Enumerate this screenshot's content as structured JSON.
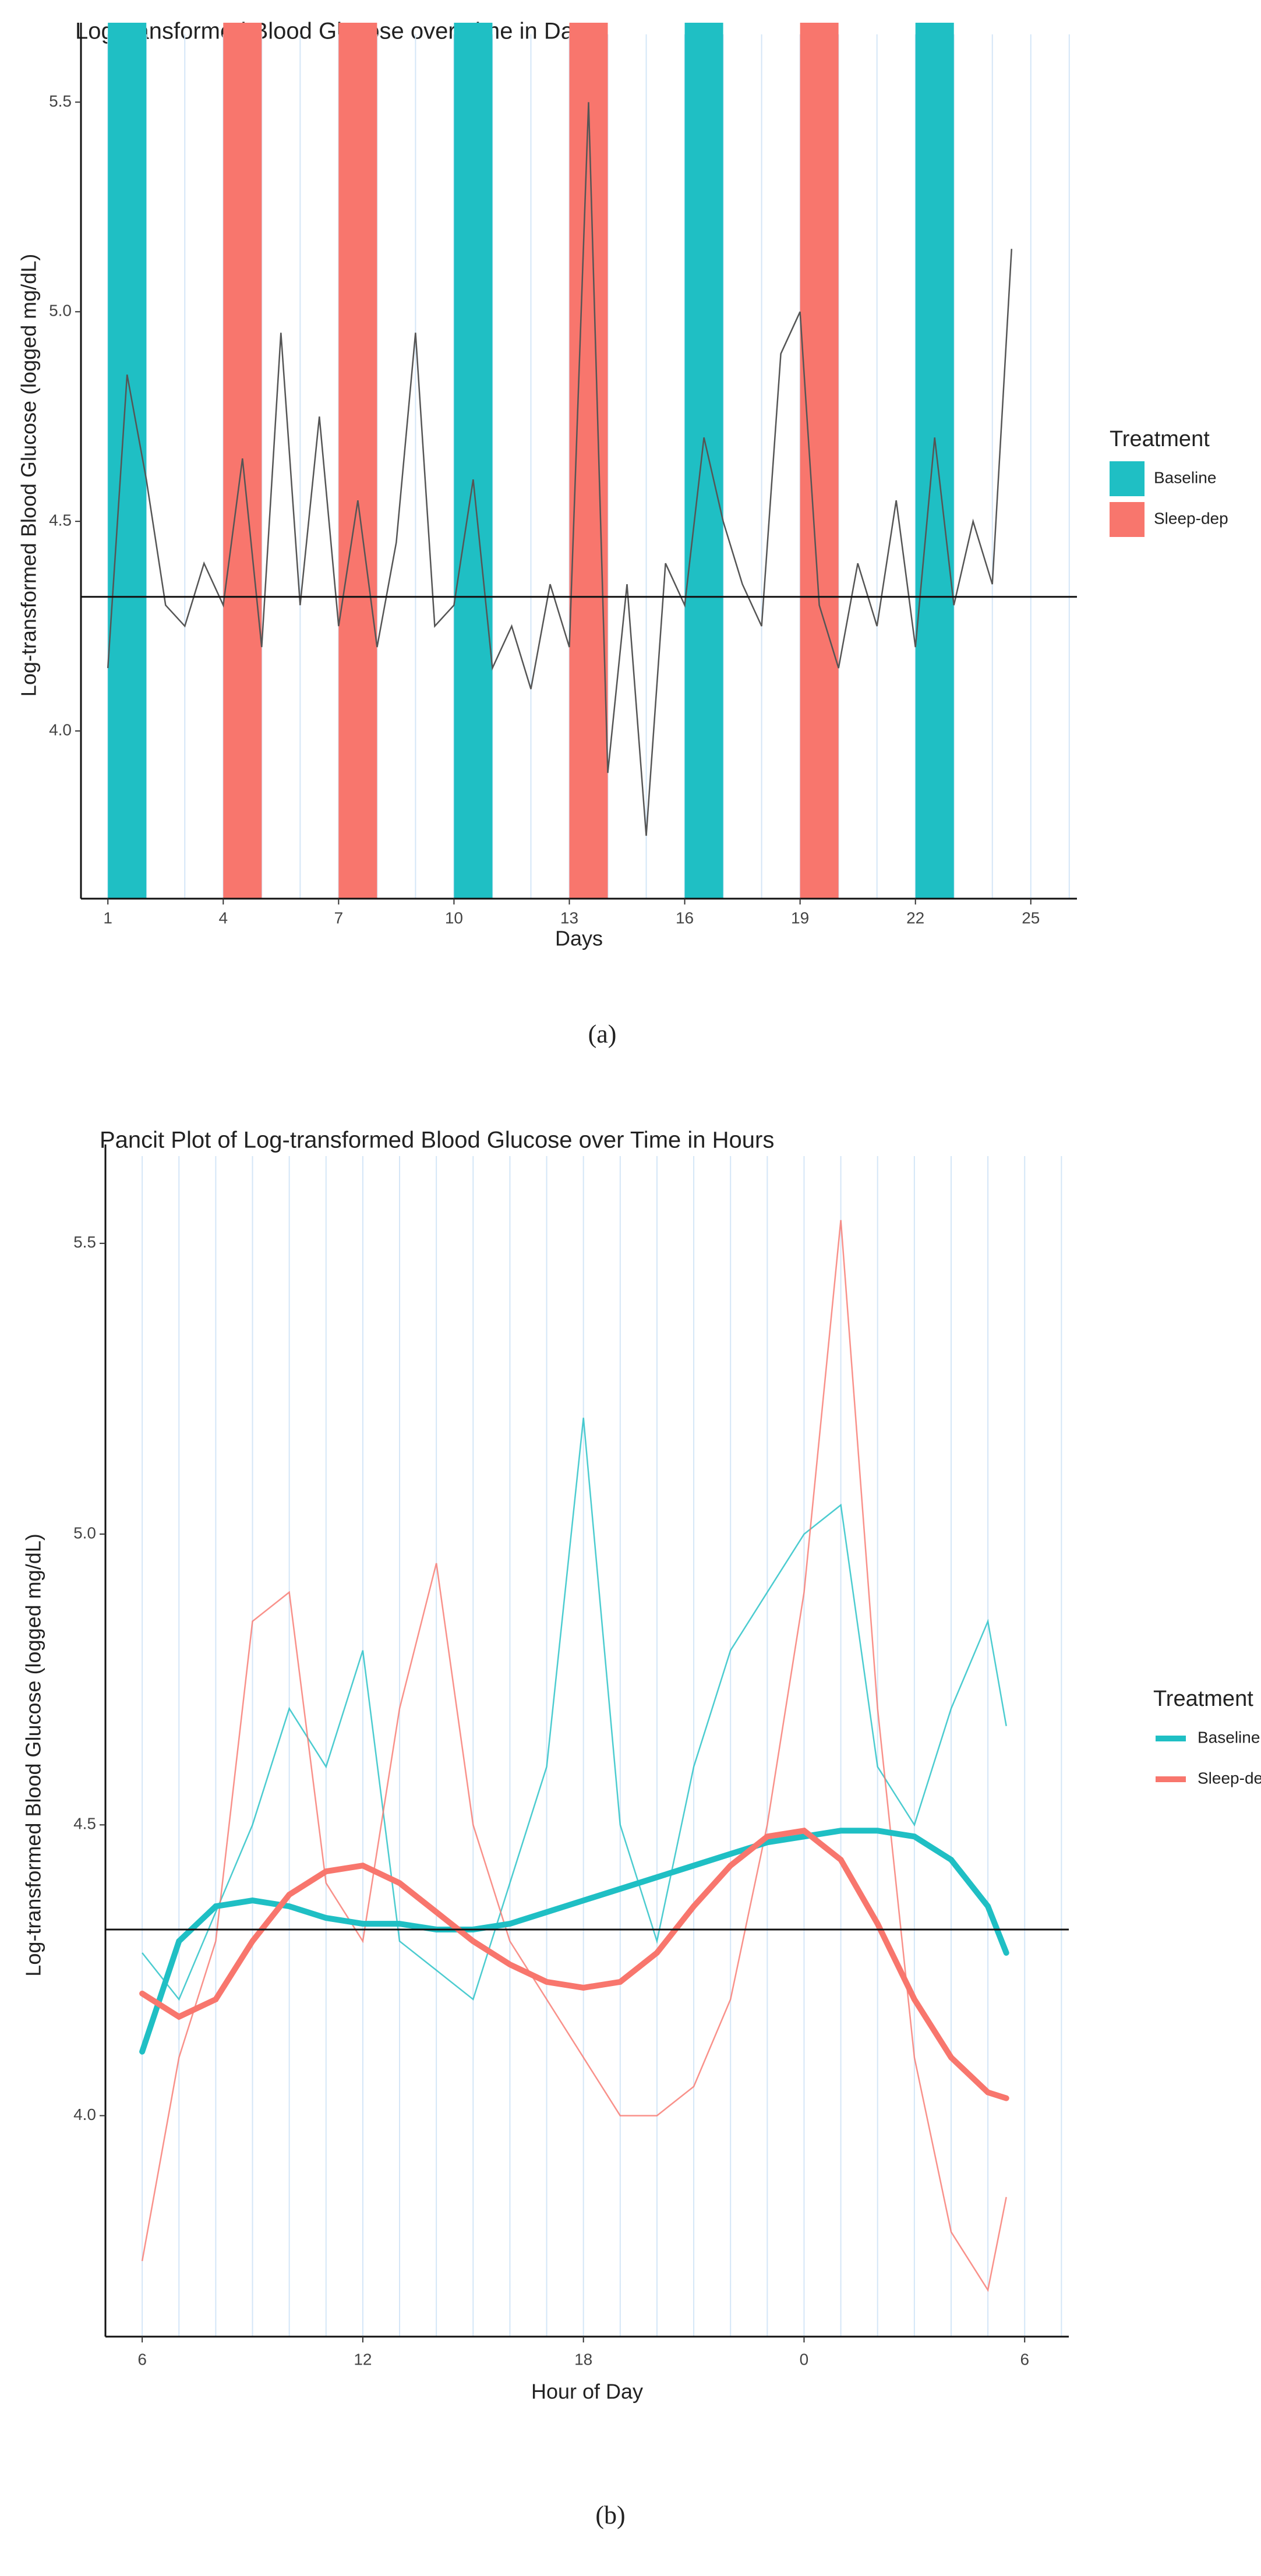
{
  "chart_data": [
    {
      "type": "line",
      "title": "Log-transformed Blood Glucose over Time in Days",
      "xlabel": "Days",
      "ylabel": "Log-transformed Blood Glucose (logged mg/dL)",
      "caption": "(a)",
      "legend_title": "Treatment",
      "legend": "right",
      "grid": "x-minor",
      "xlim": [
        0.3,
        26.2
      ],
      "xticks": [
        1,
        4,
        7,
        10,
        13,
        16,
        19,
        22,
        25
      ],
      "ylim": [
        3.6,
        5.62
      ],
      "yticks": [
        4.0,
        4.5,
        5.0,
        5.5
      ],
      "hline": 4.32,
      "color": "#555555",
      "x": [
        1,
        1.5,
        2,
        2.5,
        3,
        3.5,
        4,
        4.5,
        5,
        5.5,
        6,
        6.5,
        7,
        7.5,
        8,
        8.5,
        9,
        9.5,
        10,
        10.5,
        11,
        11.5,
        12,
        12.5,
        13,
        13.5,
        14,
        14.5,
        15,
        15.5,
        16,
        16.5,
        17,
        17.5,
        18,
        18.5,
        19,
        19.5,
        20,
        20.5,
        21,
        21.5,
        22,
        22.5,
        23,
        23.5,
        24,
        24.5
      ],
      "values": [
        4.15,
        4.85,
        4.6,
        4.3,
        4.25,
        4.4,
        4.3,
        4.65,
        4.2,
        4.95,
        4.3,
        4.75,
        4.25,
        4.55,
        4.2,
        4.45,
        4.95,
        4.25,
        4.3,
        4.6,
        4.15,
        4.25,
        4.1,
        4.35,
        4.2,
        5.5,
        3.9,
        4.35,
        3.75,
        4.4,
        4.3,
        4.7,
        4.5,
        4.35,
        4.25,
        4.9,
        5.0,
        4.3,
        4.15,
        4.4,
        4.25,
        4.55,
        4.2,
        4.7,
        4.3,
        4.5,
        4.35,
        5.15
      ],
      "series": [
        {
          "name": "Baseline",
          "color": "#1fbfc4",
          "periods": [
            [
              1,
              2
            ],
            [
              10,
              11
            ],
            [
              16,
              17
            ],
            [
              22,
              23
            ]
          ]
        },
        {
          "name": "Sleep-dep",
          "color": "#f8766d",
          "periods": [
            [
              4,
              5
            ],
            [
              7,
              8
            ],
            [
              13,
              14
            ],
            [
              19,
              20
            ]
          ]
        }
      ]
    },
    {
      "type": "line",
      "title": "Pancit Plot of Log-transformed Blood Glucose over Time in Hours",
      "xlabel": "Hour of Day",
      "ylabel": "Log-transformed Blood Glucose (logged mg/dL)",
      "caption": "(b)",
      "legend_title": "Treatment",
      "legend": "right",
      "grid": "x-minor",
      "xlim": [
        5,
        31.2
      ],
      "xticks": [
        6,
        12,
        18,
        {
          "value": 24,
          "label": "0"
        },
        {
          "value": 30,
          "label": "6"
        }
      ],
      "ylim": [
        3.62,
        5.62
      ],
      "yticks": [
        4.0,
        4.5,
        5.0,
        5.5
      ],
      "hline": 4.32,
      "x": [
        6,
        7,
        8,
        9,
        10,
        11,
        12,
        13,
        14,
        15,
        16,
        17,
        18,
        19,
        20,
        21,
        22,
        23,
        24,
        25,
        26,
        27,
        28,
        29,
        29.5
      ],
      "traces": [
        {
          "color": "#1fbfc4",
          "values": [
            4.28,
            4.2,
            4.35,
            4.5,
            4.7,
            4.6,
            4.8,
            4.3,
            4.25,
            4.2,
            4.4,
            4.6,
            5.2,
            4.5,
            4.3,
            4.6,
            4.8,
            4.9,
            5.0,
            5.05,
            4.6,
            4.5,
            4.7,
            4.85,
            4.67
          ]
        },
        {
          "color": "#f8766d",
          "values": [
            3.75,
            4.1,
            4.3,
            4.85,
            4.9,
            4.4,
            4.3,
            4.7,
            4.95,
            4.5,
            4.3,
            4.2,
            4.1,
            4.0,
            4.0,
            4.05,
            4.2,
            4.5,
            4.9,
            5.54,
            4.7,
            4.1,
            3.8,
            3.7,
            3.86
          ]
        }
      ],
      "series": [
        {
          "name": "Baseline",
          "color": "#1fbfc4",
          "values": [
            4.11,
            4.3,
            4.36,
            4.37,
            4.36,
            4.34,
            4.33,
            4.33,
            4.32,
            4.32,
            4.33,
            4.35,
            4.37,
            4.39,
            4.41,
            4.43,
            4.45,
            4.47,
            4.48,
            4.49,
            4.49,
            4.48,
            4.44,
            4.36,
            4.28
          ]
        },
        {
          "name": "Sleep-dep",
          "color": "#f8766d",
          "values": [
            4.21,
            4.17,
            4.2,
            4.3,
            4.38,
            4.42,
            4.43,
            4.4,
            4.35,
            4.3,
            4.26,
            4.23,
            4.22,
            4.23,
            4.28,
            4.36,
            4.43,
            4.48,
            4.49,
            4.44,
            4.33,
            4.2,
            4.1,
            4.04,
            4.03
          ]
        }
      ]
    }
  ]
}
